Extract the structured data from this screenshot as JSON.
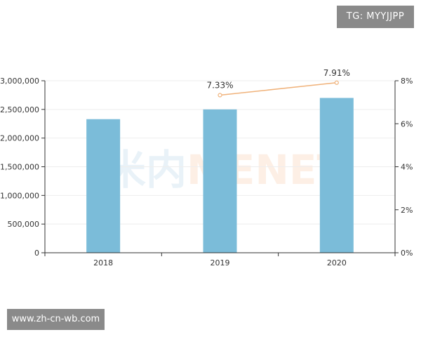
{
  "watermark_tag": "TG: MYYJJPP",
  "footer_url": "www.zh-cn-wb.com",
  "watermark_logo": {
    "cn": "米内",
    "en": "MENET"
  },
  "colors": {
    "bar": "#7bbcd9",
    "line": "#f0b27a",
    "axis": "#333333",
    "grid": "#eeeeee"
  },
  "chart_data": {
    "type": "bar",
    "categories": [
      "2018",
      "2019",
      "2020"
    ],
    "series": [
      {
        "type": "bar",
        "axis": "left",
        "values": [
          2330000,
          2500000,
          2700000
        ]
      },
      {
        "type": "line",
        "axis": "right",
        "values": [
          null,
          7.33,
          7.91
        ],
        "labels": [
          "",
          "7.33%",
          "7.91%"
        ]
      }
    ],
    "y_left": {
      "min": 0,
      "max": 3000000,
      "ticks": [
        "0",
        "500,000",
        "1,000,000",
        "1,500,000",
        "2,000,000",
        "2,500,000",
        "3,000,000"
      ]
    },
    "y_right": {
      "min": 0,
      "max": 8,
      "ticks": [
        "0%",
        "2%",
        "4%",
        "6%",
        "8%"
      ]
    },
    "grid": true,
    "legend": "none"
  }
}
